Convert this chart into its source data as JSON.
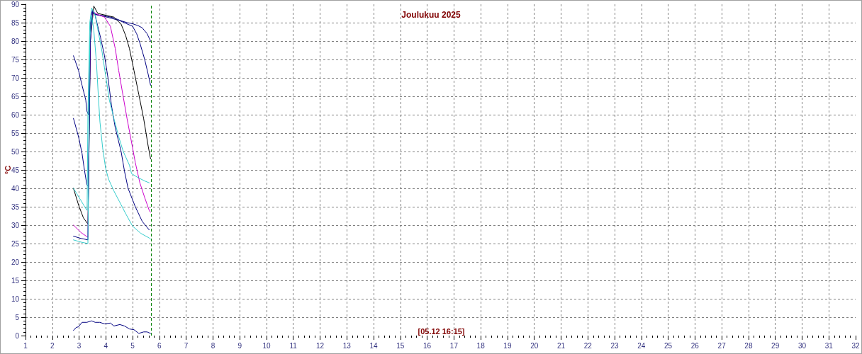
{
  "chart_data": {
    "type": "line",
    "title": "Joulukuu 2025",
    "ylabel": "°C",
    "annotations": [
      "[05.12 16:15]"
    ],
    "xlim": [
      1,
      32
    ],
    "xticks": [
      1,
      2,
      3,
      4,
      5,
      6,
      7,
      8,
      9,
      10,
      11,
      12,
      13,
      14,
      15,
      16,
      17,
      18,
      19,
      20,
      21,
      22,
      23,
      24,
      25,
      26,
      27,
      28,
      29,
      30,
      31,
      32
    ],
    "ylim": [
      0,
      90
    ],
    "yticks": [
      0,
      5,
      10,
      15,
      20,
      25,
      30,
      35,
      40,
      45,
      50,
      55,
      60,
      65,
      70,
      75,
      80,
      85,
      90
    ],
    "grid": true,
    "marker": "none",
    "line_style": "solid",
    "ref_lines": [
      {
        "axis": "x",
        "value": 5.677,
        "color": "#008000",
        "line_style": "dashed"
      }
    ],
    "series": [
      {
        "color": "#000080",
        "x": [
          2.79,
          2.98,
          3.11,
          3.25,
          3.29,
          3.35,
          3.38,
          3.43,
          3.5,
          3.6,
          3.8,
          4.0,
          4.3,
          4.57,
          4.8,
          5.0,
          5.2,
          5.36,
          5.54,
          5.67
        ],
        "values": [
          76,
          72,
          68,
          64,
          61,
          60,
          70,
          85,
          88.5,
          87.3,
          87,
          86.8,
          86.3,
          85.5,
          85,
          84.7,
          84.2,
          83.6,
          82,
          80
        ]
      },
      {
        "color": "#000080",
        "x": [
          2.79,
          2.98,
          3.11,
          3.2,
          3.29,
          3.35,
          3.38,
          3.43,
          3.5,
          3.6,
          4.0,
          4.5,
          5.0,
          5.15,
          5.27,
          5.45,
          5.58,
          5.67
        ],
        "values": [
          59,
          54,
          49.5,
          45,
          41,
          40.5,
          60,
          82,
          88,
          87.2,
          86.6,
          85.6,
          84,
          82,
          79.5,
          75,
          71,
          68
        ]
      },
      {
        "color": "#000000",
        "x": [
          2.79,
          2.98,
          3.16,
          3.33,
          3.37,
          3.42,
          3.55,
          3.7,
          4.0,
          4.3,
          4.57,
          4.74,
          4.88,
          5.05,
          5.23,
          5.41,
          5.58,
          5.67
        ],
        "values": [
          40,
          35.5,
          32,
          30.3,
          50,
          80,
          89.5,
          87.5,
          87,
          86.5,
          84.6,
          81.5,
          78,
          72,
          65.5,
          59,
          51.5,
          48
        ]
      },
      {
        "color": "#cc00cc",
        "x": [
          2.79,
          3.07,
          3.33,
          3.37,
          3.42,
          3.5,
          3.7,
          3.95,
          4.17,
          4.35,
          4.48,
          4.61,
          4.79,
          4.96,
          5.1,
          5.27,
          5.45,
          5.62,
          5.67
        ],
        "values": [
          30,
          28,
          26.7,
          55,
          80,
          88,
          87.2,
          86.5,
          84,
          78,
          72,
          66.5,
          59,
          52.5,
          47,
          41.5,
          37.5,
          34,
          33.5
        ]
      },
      {
        "color": "#000080",
        "x": [
          2.79,
          3.07,
          3.33,
          3.37,
          3.42,
          3.5,
          3.6,
          3.8,
          3.95,
          4.08,
          4.21,
          4.35,
          4.57,
          4.7,
          4.83,
          5.1,
          5.36,
          5.62
        ],
        "values": [
          27,
          26.4,
          26,
          50,
          80,
          88,
          87,
          81,
          76,
          70,
          62.5,
          56.5,
          50,
          44.5,
          40,
          35,
          31,
          28.7
        ]
      },
      {
        "color": "#33cccc",
        "x": [
          2.79,
          3.07,
          3.25,
          3.3,
          3.33,
          3.4,
          3.47,
          3.6,
          3.86,
          4.13,
          4.3,
          4.48,
          4.65,
          4.88,
          4.96,
          5.18,
          5.45,
          5.62
        ],
        "values": [
          40,
          36.7,
          34.5,
          34,
          60,
          85,
          89,
          87,
          77,
          64,
          59,
          54,
          50,
          46.3,
          44,
          43,
          42,
          41.5
        ]
      },
      {
        "color": "#33cccc",
        "x": [
          2.79,
          3.07,
          3.33,
          3.36,
          3.4,
          3.47,
          3.55,
          3.65,
          3.72,
          3.78,
          3.88,
          3.99,
          4.1,
          4.3,
          4.5,
          4.75,
          5.0,
          5.3,
          5.62,
          5.67
        ],
        "values": [
          26,
          25.4,
          25,
          50,
          80,
          87,
          83,
          74,
          65,
          58,
          51,
          45.5,
          42.5,
          39.3,
          36.5,
          33,
          29.7,
          27.8,
          26.5,
          26.2
        ]
      },
      {
        "color": "#000080",
        "x": [
          2.79,
          2.89,
          2.98,
          3.11,
          3.29,
          3.47,
          3.6,
          3.77,
          3.95,
          4.17,
          4.3,
          4.52,
          4.7,
          4.88,
          5.05,
          5.23,
          5.41,
          5.54,
          5.67
        ],
        "values": [
          1.4,
          2.2,
          2.4,
          3.6,
          3.6,
          4,
          3.6,
          3.6,
          3.2,
          3.4,
          2.6,
          3,
          2.6,
          1.8,
          1.6,
          0.6,
          1,
          1,
          0.6
        ]
      }
    ]
  }
}
